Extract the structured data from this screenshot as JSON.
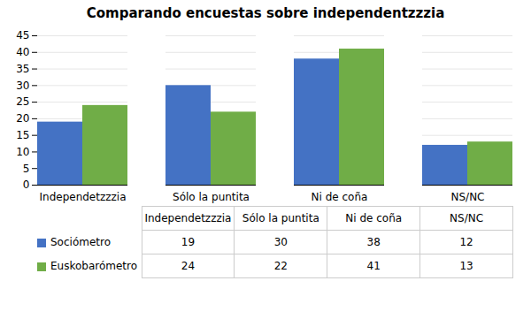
{
  "chart_data": {
    "type": "bar",
    "title": "Comparando encuestas sobre independentzzzia",
    "categories": [
      "Independetzzzia",
      "Sólo la puntita",
      "Ni de coña",
      "NS/NC"
    ],
    "series": [
      {
        "name": "Sociómetro",
        "color": "#4472C4",
        "values": [
          19,
          30,
          38,
          12
        ]
      },
      {
        "name": "Euskobarómetro",
        "color": "#70AD47",
        "values": [
          24,
          22,
          41,
          13
        ]
      }
    ],
    "ylim": [
      0,
      45
    ],
    "yticks": [
      0,
      5,
      10,
      15,
      20,
      25,
      30,
      35,
      40,
      45
    ],
    "grid": true,
    "legend": "bottom"
  }
}
